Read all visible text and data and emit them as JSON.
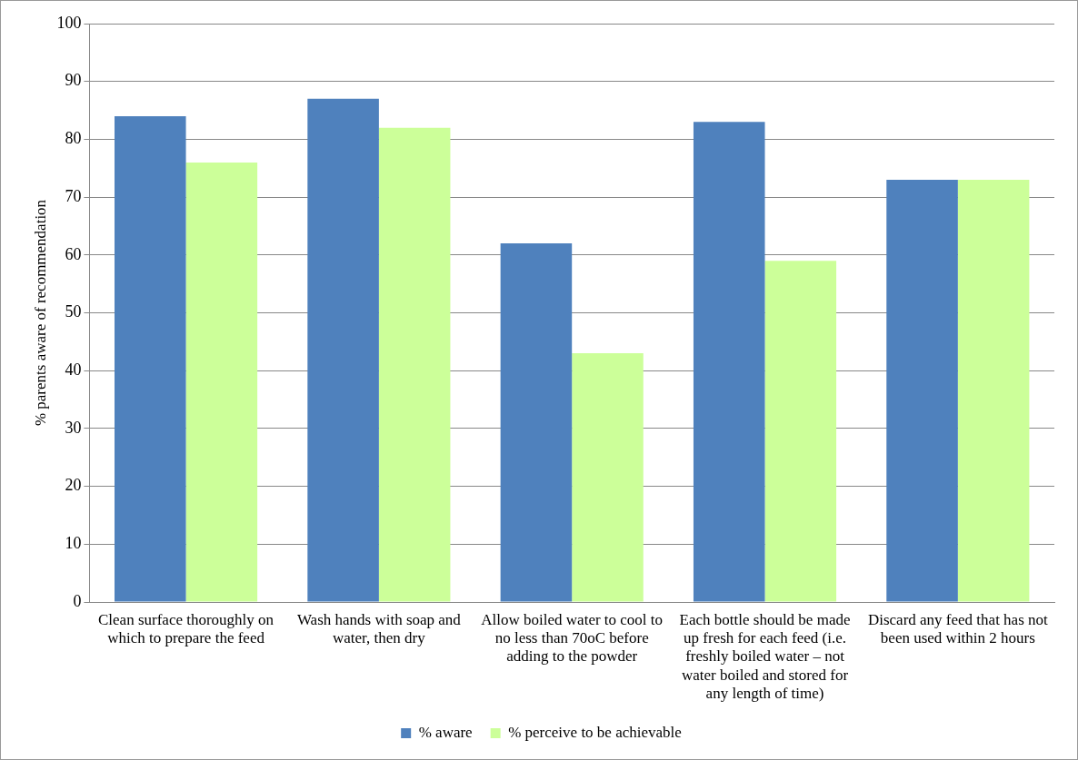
{
  "chart_data": {
    "type": "bar",
    "ylabel": "% parents aware of recommendation",
    "categories": [
      "Clean surface thoroughly on which to prepare the feed",
      "Wash hands with soap and water, then dry",
      "Allow boiled water to cool to no less than 70oC before adding to the powder",
      "Each bottle should be made up fresh for each feed (i.e. freshly boiled water – not water boiled and stored for any length of time)",
      "Discard any feed that has not been used within 2 hours"
    ],
    "series": [
      {
        "name": "% aware",
        "color": "#4f81bd",
        "values": [
          84,
          87,
          62,
          83,
          73
        ]
      },
      {
        "name": "% perceive to be achievable",
        "color": "#ccff99",
        "values": [
          76,
          82,
          43,
          59,
          73
        ]
      }
    ],
    "ylim": [
      0,
      100
    ],
    "yticks": [
      0,
      10,
      20,
      30,
      40,
      50,
      60,
      70,
      80,
      90,
      100
    ],
    "grid": "y",
    "legend": "bottom"
  }
}
